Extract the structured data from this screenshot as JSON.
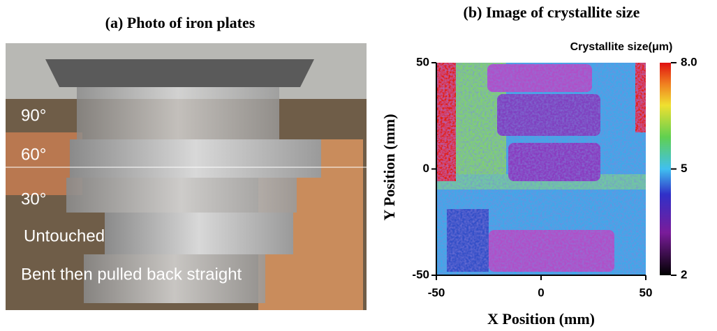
{
  "photo": {
    "title": "(a) Photo of iron plates",
    "labels": [
      "90°",
      "60°",
      "30°",
      "Untouched",
      "Bent then pulled back straight"
    ]
  },
  "chart_data": {
    "type": "heatmap",
    "title": "(b) Image of crystallite size",
    "x_label": "X Position   (mm)",
    "y_label": "Y Position   (mm)",
    "xlim": [
      -50,
      50
    ],
    "xticks": [
      -50,
      0,
      50
    ],
    "ylim": [
      -50,
      50
    ],
    "yticks": [
      -50,
      0,
      50
    ],
    "colorbar": {
      "label": "Crystallite size(μm)",
      "lim": [
        2,
        8
      ],
      "ticks": [
        2,
        5,
        {
          "value": 8,
          "label": "8.0"
        }
      ]
    }
  }
}
